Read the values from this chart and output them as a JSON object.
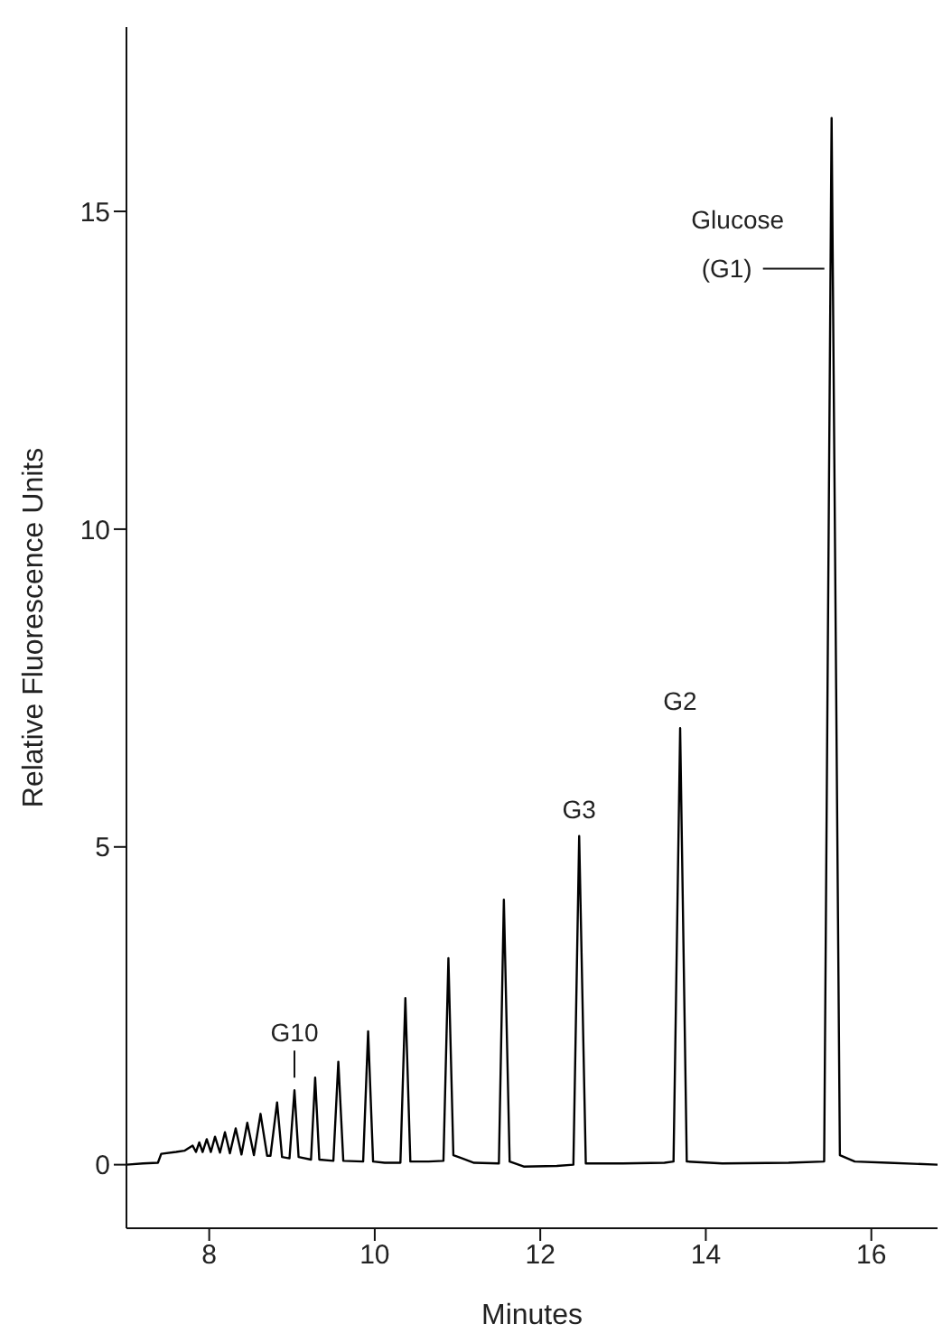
{
  "chart_data": {
    "type": "line",
    "xlabel": "Minutes",
    "ylabel": "Relative Fluorescence Units",
    "x": [
      7.0,
      7.2,
      7.38,
      7.42,
      7.6,
      7.7,
      7.8,
      7.84,
      7.88,
      7.92,
      7.97,
      8.02,
      8.07,
      8.13,
      8.19,
      8.25,
      8.32,
      8.39,
      8.46,
      8.54,
      8.62,
      8.7,
      8.74,
      8.82,
      8.88,
      8.97,
      9.03,
      9.08,
      9.23,
      9.28,
      9.33,
      9.5,
      9.56,
      9.62,
      9.86,
      9.92,
      9.98,
      10.12,
      10.31,
      10.37,
      10.43,
      10.65,
      10.83,
      10.89,
      10.95,
      11.2,
      11.5,
      11.56,
      11.63,
      11.8,
      12.2,
      12.4,
      12.47,
      12.55,
      13.0,
      13.5,
      13.61,
      13.69,
      13.77,
      14.2,
      15.0,
      15.43,
      15.52,
      15.62,
      15.8,
      16.2,
      16.8
    ],
    "series": [
      {
        "color": "#000000",
        "values": [
          0.0,
          0.02,
          0.03,
          0.17,
          0.2,
          0.22,
          0.3,
          0.2,
          0.35,
          0.2,
          0.4,
          0.2,
          0.44,
          0.19,
          0.51,
          0.18,
          0.57,
          0.16,
          0.66,
          0.15,
          0.8,
          0.14,
          0.14,
          0.98,
          0.12,
          0.1,
          1.17,
          0.12,
          0.08,
          1.37,
          0.08,
          0.06,
          1.62,
          0.06,
          0.05,
          2.1,
          0.05,
          0.03,
          0.03,
          2.62,
          0.05,
          0.05,
          0.06,
          3.25,
          0.15,
          0.03,
          0.02,
          4.17,
          0.05,
          -0.03,
          -0.02,
          0.0,
          5.17,
          0.02,
          0.02,
          0.03,
          0.05,
          6.87,
          0.05,
          0.02,
          0.03,
          0.05,
          16.47,
          0.15,
          0.05,
          0.03,
          0.0
        ]
      }
    ],
    "xlim": [
      7,
      16.8
    ],
    "xticks": [
      8,
      10,
      12,
      14,
      16
    ],
    "ylim": [
      -1,
      17.9
    ],
    "yticks": [
      0,
      5,
      10,
      15
    ],
    "grid": false,
    "legend": false,
    "marker": "none",
    "line_style": "solid",
    "annotations": [
      {
        "text": "G10",
        "x": 9.03,
        "y": 1.17
      },
      {
        "text": "G3",
        "x": 12.47,
        "y": 5.17
      },
      {
        "text": "G2",
        "x": 13.69,
        "y": 6.87
      },
      {
        "text": "Glucose (G1)",
        "x": 15.52,
        "y": 14.1
      }
    ]
  }
}
